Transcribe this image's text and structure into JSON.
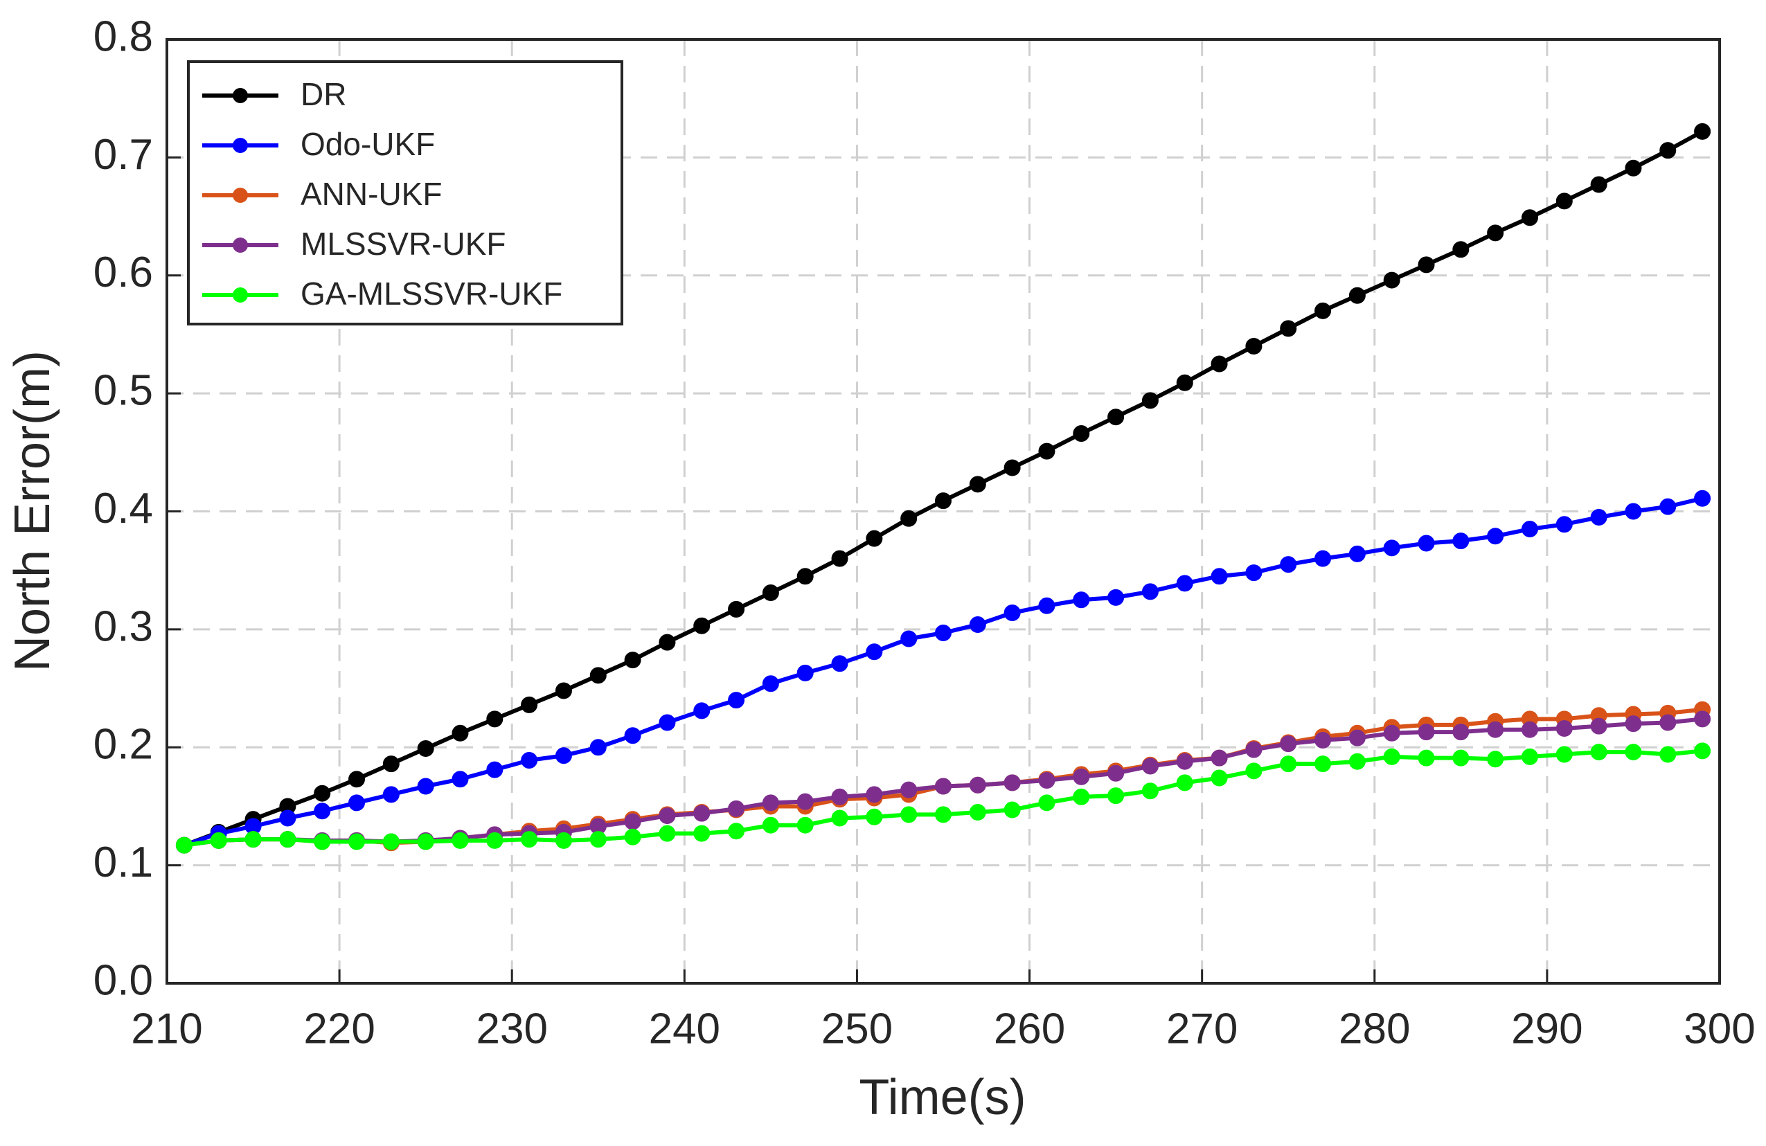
{
  "chart_data": {
    "type": "line",
    "xlabel": "Time(s)",
    "ylabel": "North Error(m)",
    "x": [
      211,
      213,
      215,
      217,
      219,
      221,
      223,
      225,
      227,
      229,
      231,
      233,
      235,
      237,
      239,
      241,
      243,
      245,
      247,
      249,
      251,
      253,
      255,
      257,
      259,
      261,
      263,
      265,
      267,
      269,
      271,
      273,
      275,
      277,
      279,
      281,
      283,
      285,
      287,
      289,
      291,
      293,
      295,
      297,
      299
    ],
    "series": [
      {
        "name": "DR",
        "color": "#000000",
        "values": [
          0.117,
          0.128,
          0.139,
          0.15,
          0.161,
          0.173,
          0.186,
          0.199,
          0.212,
          0.224,
          0.236,
          0.248,
          0.261,
          0.274,
          0.289,
          0.303,
          0.317,
          0.331,
          0.345,
          0.36,
          0.377,
          0.394,
          0.409,
          0.423,
          0.437,
          0.451,
          0.466,
          0.48,
          0.494,
          0.509,
          0.525,
          0.54,
          0.555,
          0.57,
          0.583,
          0.596,
          0.609,
          0.622,
          0.636,
          0.649,
          0.663,
          0.677,
          0.691,
          0.706,
          0.722
        ]
      },
      {
        "name": "Odo-UKF",
        "color": "#0000ff",
        "values": [
          0.117,
          0.127,
          0.133,
          0.14,
          0.146,
          0.153,
          0.16,
          0.167,
          0.173,
          0.181,
          0.189,
          0.193,
          0.2,
          0.21,
          0.221,
          0.231,
          0.24,
          0.254,
          0.263,
          0.271,
          0.281,
          0.292,
          0.297,
          0.304,
          0.314,
          0.32,
          0.325,
          0.327,
          0.332,
          0.339,
          0.345,
          0.348,
          0.355,
          0.36,
          0.364,
          0.369,
          0.373,
          0.375,
          0.379,
          0.385,
          0.389,
          0.395,
          0.4,
          0.404,
          0.411
        ]
      },
      {
        "name": "ANN-UKF",
        "color": "#d95319",
        "values": [
          0.117,
          0.121,
          0.122,
          0.122,
          0.12,
          0.121,
          0.119,
          0.12,
          0.123,
          0.126,
          0.129,
          0.131,
          0.135,
          0.139,
          0.143,
          0.145,
          0.147,
          0.15,
          0.15,
          0.156,
          0.157,
          0.16,
          0.167,
          0.168,
          0.17,
          0.173,
          0.177,
          0.18,
          0.185,
          0.189,
          0.191,
          0.199,
          0.204,
          0.209,
          0.212,
          0.217,
          0.219,
          0.219,
          0.222,
          0.224,
          0.224,
          0.227,
          0.228,
          0.229,
          0.232
        ]
      },
      {
        "name": "MLSSVR-UKF",
        "color": "#7e2f8e",
        "values": [
          0.117,
          0.121,
          0.122,
          0.122,
          0.121,
          0.121,
          0.12,
          0.121,
          0.123,
          0.126,
          0.127,
          0.128,
          0.133,
          0.137,
          0.142,
          0.144,
          0.148,
          0.153,
          0.154,
          0.158,
          0.16,
          0.164,
          0.167,
          0.168,
          0.17,
          0.172,
          0.175,
          0.178,
          0.184,
          0.188,
          0.191,
          0.198,
          0.203,
          0.206,
          0.208,
          0.212,
          0.213,
          0.213,
          0.215,
          0.215,
          0.216,
          0.218,
          0.22,
          0.221,
          0.224
        ]
      },
      {
        "name": "GA-MLSSVR-UKF",
        "color": "#00ff00",
        "values": [
          0.117,
          0.121,
          0.122,
          0.122,
          0.12,
          0.12,
          0.12,
          0.12,
          0.121,
          0.121,
          0.122,
          0.121,
          0.122,
          0.124,
          0.127,
          0.127,
          0.129,
          0.134,
          0.134,
          0.14,
          0.141,
          0.143,
          0.143,
          0.145,
          0.147,
          0.153,
          0.158,
          0.159,
          0.163,
          0.17,
          0.174,
          0.18,
          0.186,
          0.186,
          0.188,
          0.192,
          0.191,
          0.191,
          0.19,
          0.192,
          0.194,
          0.196,
          0.196,
          0.194,
          0.197
        ]
      }
    ],
    "xlim": [
      210,
      300
    ],
    "xticks": [
      210,
      220,
      230,
      240,
      250,
      260,
      270,
      280,
      290,
      300
    ],
    "ylim": [
      0,
      0.8
    ],
    "yticks": [
      {
        "value": 0,
        "label": "0.0"
      },
      0.1,
      0.2,
      0.3,
      0.4,
      0.5,
      0.6,
      0.7,
      0.8
    ],
    "grid": true,
    "legend": "upper-left"
  }
}
